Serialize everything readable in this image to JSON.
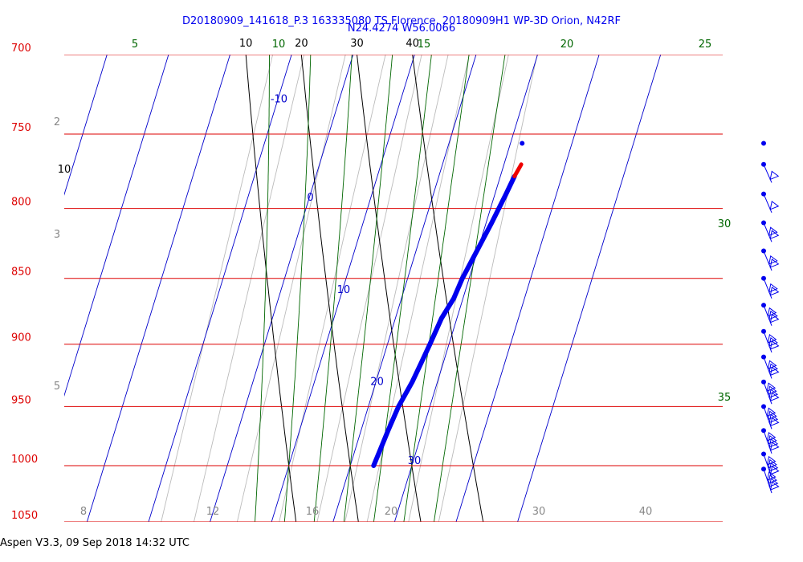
{
  "chart_data": {
    "type": "skew-t",
    "title_line1": "D20180909_141618_P.3 163335080 TS Florence, 20180909H1 WP-3D Orion, N42RF",
    "title_line2": "N24.4274 W56.0066",
    "footer": "Aspen V3.3, 09 Sep 2018  14:32 UTC",
    "colors": {
      "isobar": "#dd0000",
      "isotherm": "#0000cc",
      "dry_adiabat": "#000000",
      "moist_adiabat": "#006600",
      "mixing_ratio": "#999999",
      "temperature_trace": "#0000ee",
      "dewpoint_trace": "#ee0000",
      "title": "#0000ee"
    },
    "pressure_levels_hpa": [
      "700",
      "750",
      "800",
      "850",
      "900",
      "950",
      "1000",
      "1050"
    ],
    "isotherm_labels_c": [
      "-10",
      "0",
      "10",
      "20",
      "30"
    ],
    "dry_adiabat_labels_c": [
      "10",
      "20",
      "30",
      "40"
    ],
    "moist_adiabat_labels_c": [
      "5",
      "10",
      "15",
      "20",
      "25",
      "30",
      "35"
    ],
    "mixing_ratio_labels_gkg": [
      "2",
      "3",
      "5",
      "8",
      "12",
      "16",
      "20",
      "30",
      "40"
    ],
    "temperature_profile": [
      {
        "p": 1000,
        "t": 23.8
      },
      {
        "p": 990,
        "t": 24.0
      },
      {
        "p": 970,
        "t": 24.4
      },
      {
        "p": 950,
        "t": 24.9
      },
      {
        "p": 930,
        "t": 25.9
      },
      {
        "p": 915,
        "t": 26.4
      },
      {
        "p": 900,
        "t": 26.9
      },
      {
        "p": 880,
        "t": 27.5
      },
      {
        "p": 865,
        "t": 28.5
      },
      {
        "p": 850,
        "t": 28.9
      },
      {
        "p": 830,
        "t": 29.9
      },
      {
        "p": 810,
        "t": 30.9
      },
      {
        "p": 790,
        "t": 31.8
      },
      {
        "p": 778,
        "t": 32.3
      }
    ],
    "dewpoint_profile": [
      {
        "p": 778,
        "t": 32.3
      },
      {
        "p": 770,
        "t": 32.8
      }
    ],
    "top_point": {
      "p": 756,
      "t": 31.9
    },
    "wind_barb_pressures_hpa": [
      756,
      770,
      790,
      810,
      830,
      850,
      870,
      890,
      910,
      930,
      950,
      970,
      990,
      1003
    ]
  }
}
